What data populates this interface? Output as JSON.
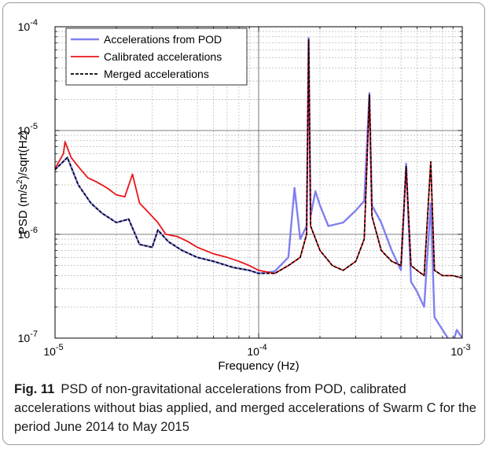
{
  "caption": {
    "label": "Fig. 11",
    "text": "PSD of non-gravitational accelerations from POD, calibrated accelerations without bias applied, and merged accelerations of Swarm C for the period June 2014 to May 2015"
  },
  "chart_data": {
    "type": "line",
    "title": "",
    "xlabel": "Frequency (Hz)",
    "ylabel": "PSD (m/s²)/sqrt(Hz)",
    "xscale": "log",
    "yscale": "log",
    "xlim": [
      1e-05,
      0.001
    ],
    "ylim": [
      1e-07,
      0.0001
    ],
    "grid": "major and minor",
    "legend_position": "top-left",
    "x_ticks": [
      {
        "value": 1e-05,
        "base": "10",
        "exp": "-5"
      },
      {
        "value": 0.0001,
        "base": "10",
        "exp": "-4"
      },
      {
        "value": 0.001,
        "base": "10",
        "exp": "-3"
      }
    ],
    "y_ticks": [
      {
        "value": 1e-07,
        "base": "10",
        "exp": "-7"
      },
      {
        "value": 1e-06,
        "base": "10",
        "exp": "-6"
      },
      {
        "value": 1e-05,
        "base": "10",
        "exp": "-5"
      },
      {
        "value": 0.0001,
        "base": "10",
        "exp": "-4"
      }
    ],
    "series": [
      {
        "name": "Accelerations from POD",
        "color": "#8080f0",
        "style": "solid",
        "points": [
          [
            1e-05,
            4.2e-06
          ],
          [
            1.15e-05,
            5.5e-06
          ],
          [
            1.3e-05,
            3e-06
          ],
          [
            1.5e-05,
            2e-06
          ],
          [
            1.7e-05,
            1.6e-06
          ],
          [
            2e-05,
            1.3e-06
          ],
          [
            2.3e-05,
            1.4e-06
          ],
          [
            2.6e-05,
            8e-07
          ],
          [
            3e-05,
            7.5e-07
          ],
          [
            3.2e-05,
            1.1e-06
          ],
          [
            3.6e-05,
            8.5e-07
          ],
          [
            4.2e-05,
            7e-07
          ],
          [
            5e-05,
            6e-07
          ],
          [
            6e-05,
            5.5e-07
          ],
          [
            7.5e-05,
            4.8e-07
          ],
          [
            9e-05,
            4.5e-07
          ],
          [
            0.0001,
            4.2e-07
          ],
          [
            0.00012,
            4.4e-07
          ],
          [
            0.00014,
            6e-07
          ],
          [
            0.00015,
            2.8e-06
          ],
          [
            0.00016,
            9e-07
          ],
          [
            0.000172,
            1.2e-06
          ],
          [
            0.000176,
            7.8e-05
          ],
          [
            0.00018,
            1.5e-06
          ],
          [
            0.00019,
            2.6e-06
          ],
          [
            0.0002,
            1.9e-06
          ],
          [
            0.00022,
            1.2e-06
          ],
          [
            0.00026,
            1.3e-06
          ],
          [
            0.0003,
            1.7e-06
          ],
          [
            0.00033,
            2.1e-06
          ],
          [
            0.00035,
            2.3e-05
          ],
          [
            0.00036,
            1.9e-06
          ],
          [
            0.0004,
            1.3e-06
          ],
          [
            0.00045,
            7e-07
          ],
          [
            0.0005,
            4.5e-07
          ],
          [
            0.00053,
            4.8e-06
          ],
          [
            0.00056,
            3.5e-07
          ],
          [
            0.0006,
            2.8e-07
          ],
          [
            0.00065,
            2e-07
          ],
          [
            0.0007,
            2e-06
          ],
          [
            0.00073,
            1.6e-07
          ],
          [
            0.0008,
            1.2e-07
          ],
          [
            0.00085,
            1e-07
          ],
          [
            0.0009,
            9e-08
          ],
          [
            0.00094,
            1.2e-07
          ],
          [
            0.001,
            1e-07
          ]
        ]
      },
      {
        "name": "Calibrated accelerations",
        "color": "#e8151a",
        "style": "solid",
        "points": [
          [
            1e-05,
            4.3e-06
          ],
          [
            1.1e-05,
            6e-06
          ],
          [
            1.12e-05,
            7.8e-06
          ],
          [
            1.2e-05,
            5.5e-06
          ],
          [
            1.3e-05,
            4.5e-06
          ],
          [
            1.45e-05,
            3.5e-06
          ],
          [
            1.6e-05,
            3.2e-06
          ],
          [
            1.8e-05,
            2.8e-06
          ],
          [
            2e-05,
            2.4e-06
          ],
          [
            2.2e-05,
            2.3e-06
          ],
          [
            2.4e-05,
            3.8e-06
          ],
          [
            2.6e-05,
            2e-06
          ],
          [
            2.9e-05,
            1.6e-06
          ],
          [
            3.2e-05,
            1.3e-06
          ],
          [
            3.5e-05,
            1e-06
          ],
          [
            4e-05,
            9.5e-07
          ],
          [
            4.5e-05,
            8.5e-07
          ],
          [
            5e-05,
            7.5e-07
          ],
          [
            6e-05,
            6.5e-07
          ],
          [
            7e-05,
            6e-07
          ],
          [
            8e-05,
            5.5e-07
          ],
          [
            9e-05,
            5e-07
          ],
          [
            0.0001,
            4.5e-07
          ],
          [
            0.00012,
            4.2e-07
          ],
          [
            0.00014,
            5e-07
          ],
          [
            0.00016,
            6e-07
          ],
          [
            0.000172,
            1e-06
          ],
          [
            0.000176,
            7.5e-05
          ],
          [
            0.00018,
            1.2e-06
          ],
          [
            0.0002,
            7e-07
          ],
          [
            0.00023,
            5e-07
          ],
          [
            0.00026,
            4.5e-07
          ],
          [
            0.0003,
            5.5e-07
          ],
          [
            0.00033,
            9e-07
          ],
          [
            0.00035,
            2.2e-05
          ],
          [
            0.00036,
            1.5e-06
          ],
          [
            0.0004,
            7e-07
          ],
          [
            0.00045,
            5.5e-07
          ],
          [
            0.0005,
            5e-07
          ],
          [
            0.00053,
            4.5e-06
          ],
          [
            0.00056,
            5e-07
          ],
          [
            0.0006,
            4.5e-07
          ],
          [
            0.00065,
            4e-07
          ],
          [
            0.0007,
            5e-06
          ],
          [
            0.00073,
            4.5e-07
          ],
          [
            0.0008,
            4e-07
          ],
          [
            0.0009,
            4e-07
          ],
          [
            0.001,
            3.8e-07
          ]
        ]
      },
      {
        "name": "Merged accelerations",
        "color": "#000000",
        "style": "dashed",
        "points": [
          [
            1e-05,
            4.2e-06
          ],
          [
            1.15e-05,
            5.5e-06
          ],
          [
            1.3e-05,
            3e-06
          ],
          [
            1.5e-05,
            2e-06
          ],
          [
            1.7e-05,
            1.6e-06
          ],
          [
            2e-05,
            1.3e-06
          ],
          [
            2.3e-05,
            1.4e-06
          ],
          [
            2.6e-05,
            8e-07
          ],
          [
            3e-05,
            7.5e-07
          ],
          [
            3.2e-05,
            1.1e-06
          ],
          [
            3.6e-05,
            8.5e-07
          ],
          [
            4.2e-05,
            7e-07
          ],
          [
            5e-05,
            6e-07
          ],
          [
            6e-05,
            5.5e-07
          ],
          [
            7.5e-05,
            4.8e-07
          ],
          [
            9e-05,
            4.5e-07
          ],
          [
            0.0001,
            4.2e-07
          ],
          [
            0.00012,
            4.2e-07
          ],
          [
            0.00014,
            5e-07
          ],
          [
            0.00016,
            6e-07
          ],
          [
            0.000172,
            1e-06
          ],
          [
            0.000176,
            7.5e-05
          ],
          [
            0.00018,
            1.2e-06
          ],
          [
            0.0002,
            7e-07
          ],
          [
            0.00023,
            5e-07
          ],
          [
            0.00026,
            4.5e-07
          ],
          [
            0.0003,
            5.5e-07
          ],
          [
            0.00033,
            9e-07
          ],
          [
            0.00035,
            2.2e-05
          ],
          [
            0.00036,
            1.5e-06
          ],
          [
            0.0004,
            7e-07
          ],
          [
            0.00045,
            5.5e-07
          ],
          [
            0.0005,
            5e-07
          ],
          [
            0.00053,
            4.5e-06
          ],
          [
            0.00056,
            5e-07
          ],
          [
            0.0006,
            4.5e-07
          ],
          [
            0.00065,
            4e-07
          ],
          [
            0.0007,
            5e-06
          ],
          [
            0.00073,
            4.5e-07
          ],
          [
            0.0008,
            4e-07
          ],
          [
            0.0009,
            4e-07
          ],
          [
            0.001,
            3.8e-07
          ]
        ]
      }
    ]
  }
}
